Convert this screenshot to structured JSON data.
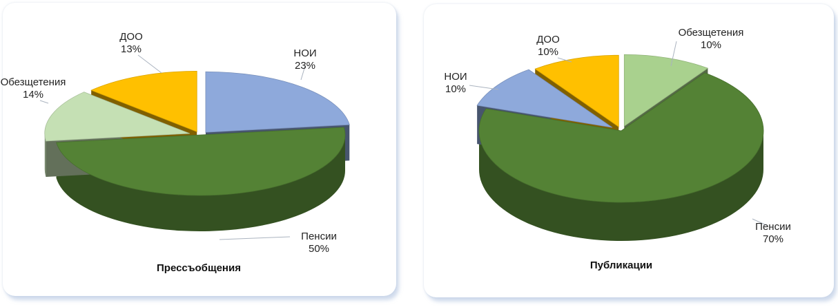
{
  "chart_data": [
    {
      "type": "pie",
      "title": "Прессъобщения",
      "categories": [
        "НОИ",
        "Пенсии",
        "Обезщетения",
        "ДОО"
      ],
      "values": [
        23,
        50,
        14,
        13
      ],
      "labels": [
        "23%",
        "50%",
        "14%",
        "13%"
      ],
      "colors": [
        "#8EA9DB",
        "#548235",
        "#C5E0B4",
        "#FFC000"
      ],
      "legend": "none"
    },
    {
      "type": "pie",
      "title": "Публикации",
      "categories": [
        "Обезщетения",
        "Пенсии",
        "НОИ",
        "ДОО"
      ],
      "values": [
        10,
        70,
        10,
        10
      ],
      "labels": [
        "10%",
        "70%",
        "10%",
        "10%"
      ],
      "colors": [
        "#A9D18E",
        "#548235",
        "#8EA9DB",
        "#FFC000"
      ],
      "legend": "none"
    }
  ]
}
